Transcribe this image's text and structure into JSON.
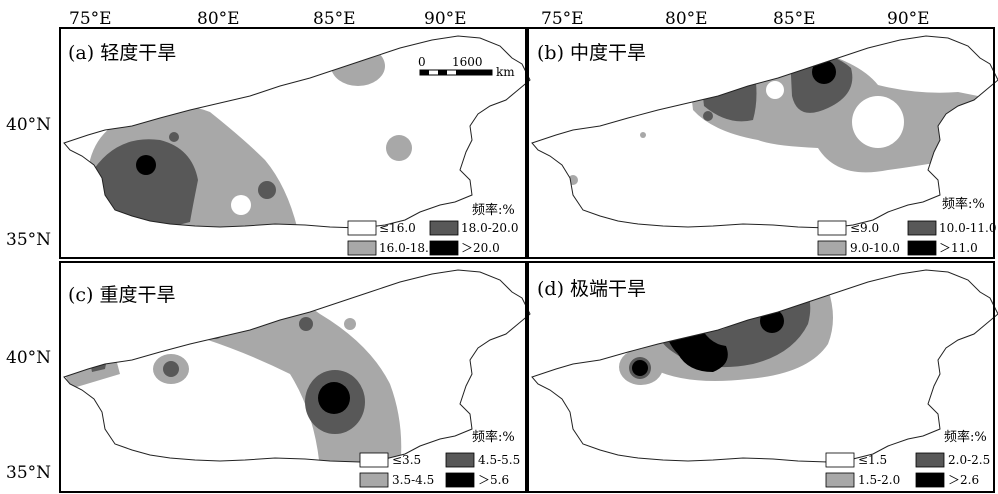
{
  "top_axis": {
    "ticks": [
      "75°E",
      "80°E",
      "85°E",
      "90°E"
    ]
  },
  "left_axis": {
    "ticks": [
      "40°N",
      "35°N"
    ]
  },
  "scale_bar": {
    "zero": "0",
    "distance": "1600",
    "unit": "km"
  },
  "panels": [
    {
      "title": "(a) 轻度干旱",
      "legend_title": "频率:%",
      "legend": [
        "≤16.0",
        "18.0-20.0",
        "16.0-18.0",
        "＞20.0"
      ]
    },
    {
      "title": "(b) 中度干旱",
      "legend_title": "频率:%",
      "legend": [
        "≤9.0",
        "10.0-11.0",
        "9.0-10.0",
        "＞11.0"
      ]
    },
    {
      "title": "(c) 重度干旱",
      "legend_title": "频率:%",
      "legend": [
        "≤3.5",
        "4.5-5.5",
        "3.5-4.5",
        "＞5.6"
      ]
    },
    {
      "title": "(d) 极端干旱",
      "legend_title": "频率:%",
      "legend": [
        "≤1.5",
        "2.0-2.5",
        "1.5-2.0",
        "＞2.6"
      ]
    }
  ],
  "colors": {
    "class1": "#ffffff",
    "class2": "#a8a8a8",
    "class3": "#585858",
    "class4": "#000000"
  }
}
